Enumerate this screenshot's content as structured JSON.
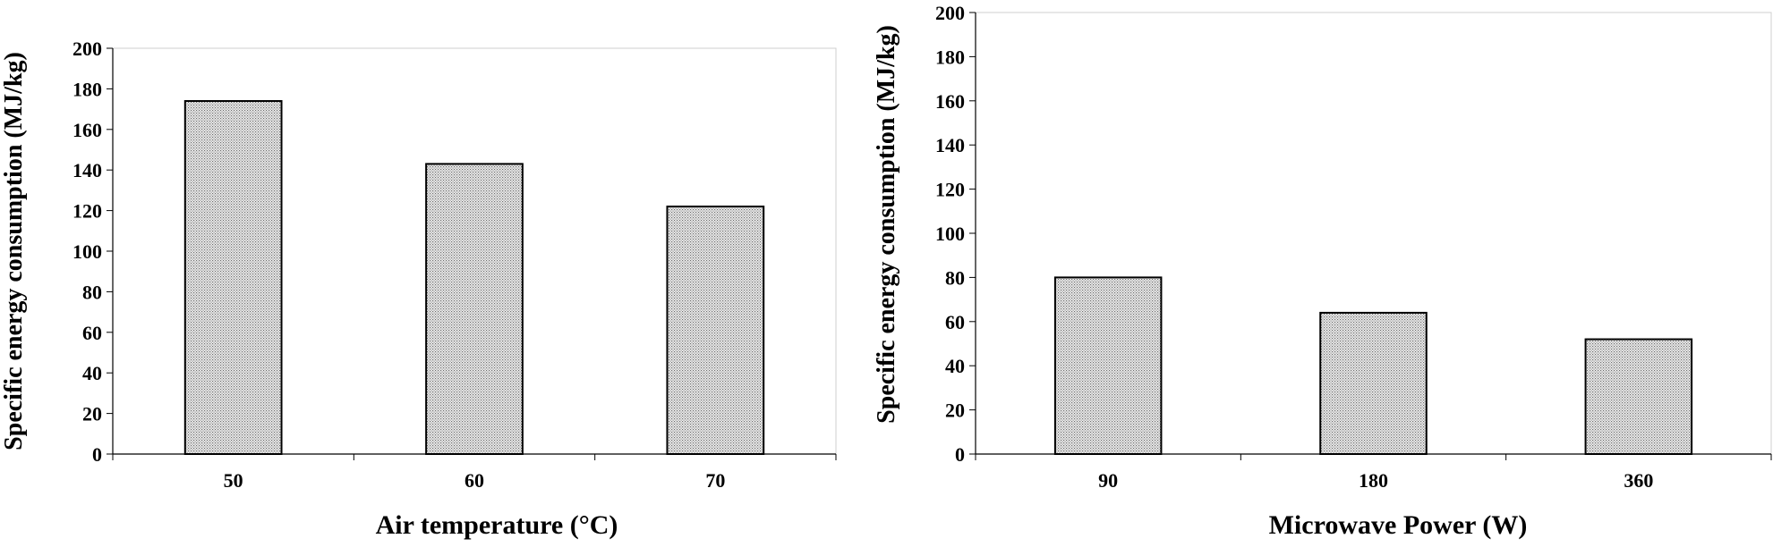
{
  "chart_data": [
    {
      "type": "bar",
      "categories": [
        "50",
        "60",
        "70"
      ],
      "values": [
        174,
        143,
        122
      ],
      "xlabel": "Air temperature (°C)",
      "ylabel": "Specific energy consumption (MJ/kg)",
      "ylim": [
        0,
        200
      ],
      "yticks": [
        0,
        20,
        40,
        60,
        80,
        100,
        120,
        140,
        160,
        180,
        200
      ],
      "grid": false,
      "bar_fill": "#d4d4d4"
    },
    {
      "type": "bar",
      "categories": [
        "90",
        "180",
        "360"
      ],
      "values": [
        80,
        64,
        52
      ],
      "xlabel": "Microwave Power (W)",
      "ylabel": "Specific energy consumption (MJ/kg)",
      "ylim": [
        0,
        200
      ],
      "yticks": [
        0,
        20,
        40,
        60,
        80,
        100,
        120,
        140,
        160,
        180,
        200
      ],
      "grid": false,
      "bar_fill": "#d4d4d4"
    }
  ]
}
